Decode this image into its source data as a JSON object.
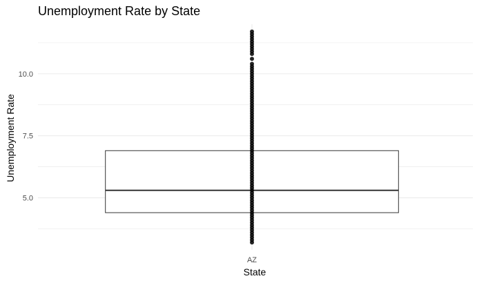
{
  "chart_data": {
    "type": "box",
    "title": "Unemployment Rate by State",
    "xlabel": "State",
    "ylabel": "Unemployment Rate",
    "categories": [
      "AZ"
    ],
    "ylim": [
      2.9,
      12.0
    ],
    "yticks": [
      {
        "value": 5.0,
        "label": "5.0"
      },
      {
        "value": 7.5,
        "label": "7.5"
      },
      {
        "value": 10.0,
        "label": "10.0"
      }
    ],
    "minor_gridlines": [
      3.75,
      6.25,
      8.75,
      11.25
    ],
    "grid": true,
    "legend": "none",
    "colors": {
      "box_outline": "#333333",
      "points": "#000000",
      "grid": "#ebebeb"
    },
    "series": [
      {
        "category": "AZ",
        "q1": 4.4,
        "median": 5.3,
        "q3": 6.9,
        "points": [
          3.2,
          3.3,
          3.4,
          3.5,
          3.6,
          3.7,
          3.8,
          3.9,
          4.0,
          4.1,
          4.2,
          4.3,
          4.4,
          4.5,
          4.6,
          4.7,
          4.8,
          4.9,
          5.0,
          5.1,
          5.2,
          5.3,
          5.4,
          5.5,
          5.6,
          5.7,
          5.8,
          5.9,
          6.0,
          6.1,
          6.2,
          6.3,
          6.4,
          6.5,
          6.6,
          6.7,
          6.8,
          6.9,
          7.0,
          7.1,
          7.2,
          7.3,
          7.4,
          7.5,
          7.6,
          7.7,
          7.8,
          7.9,
          8.0,
          8.1,
          8.2,
          8.3,
          8.4,
          8.5,
          8.6,
          8.7,
          8.8,
          8.9,
          9.0,
          9.1,
          9.2,
          9.3,
          9.4,
          9.5,
          9.6,
          9.7,
          9.8,
          9.9,
          10.0,
          10.1,
          10.2,
          10.3,
          10.4,
          10.6,
          10.8,
          10.9,
          11.0,
          11.1,
          11.2,
          11.3,
          11.4,
          11.5,
          11.6,
          11.7
        ]
      }
    ]
  }
}
